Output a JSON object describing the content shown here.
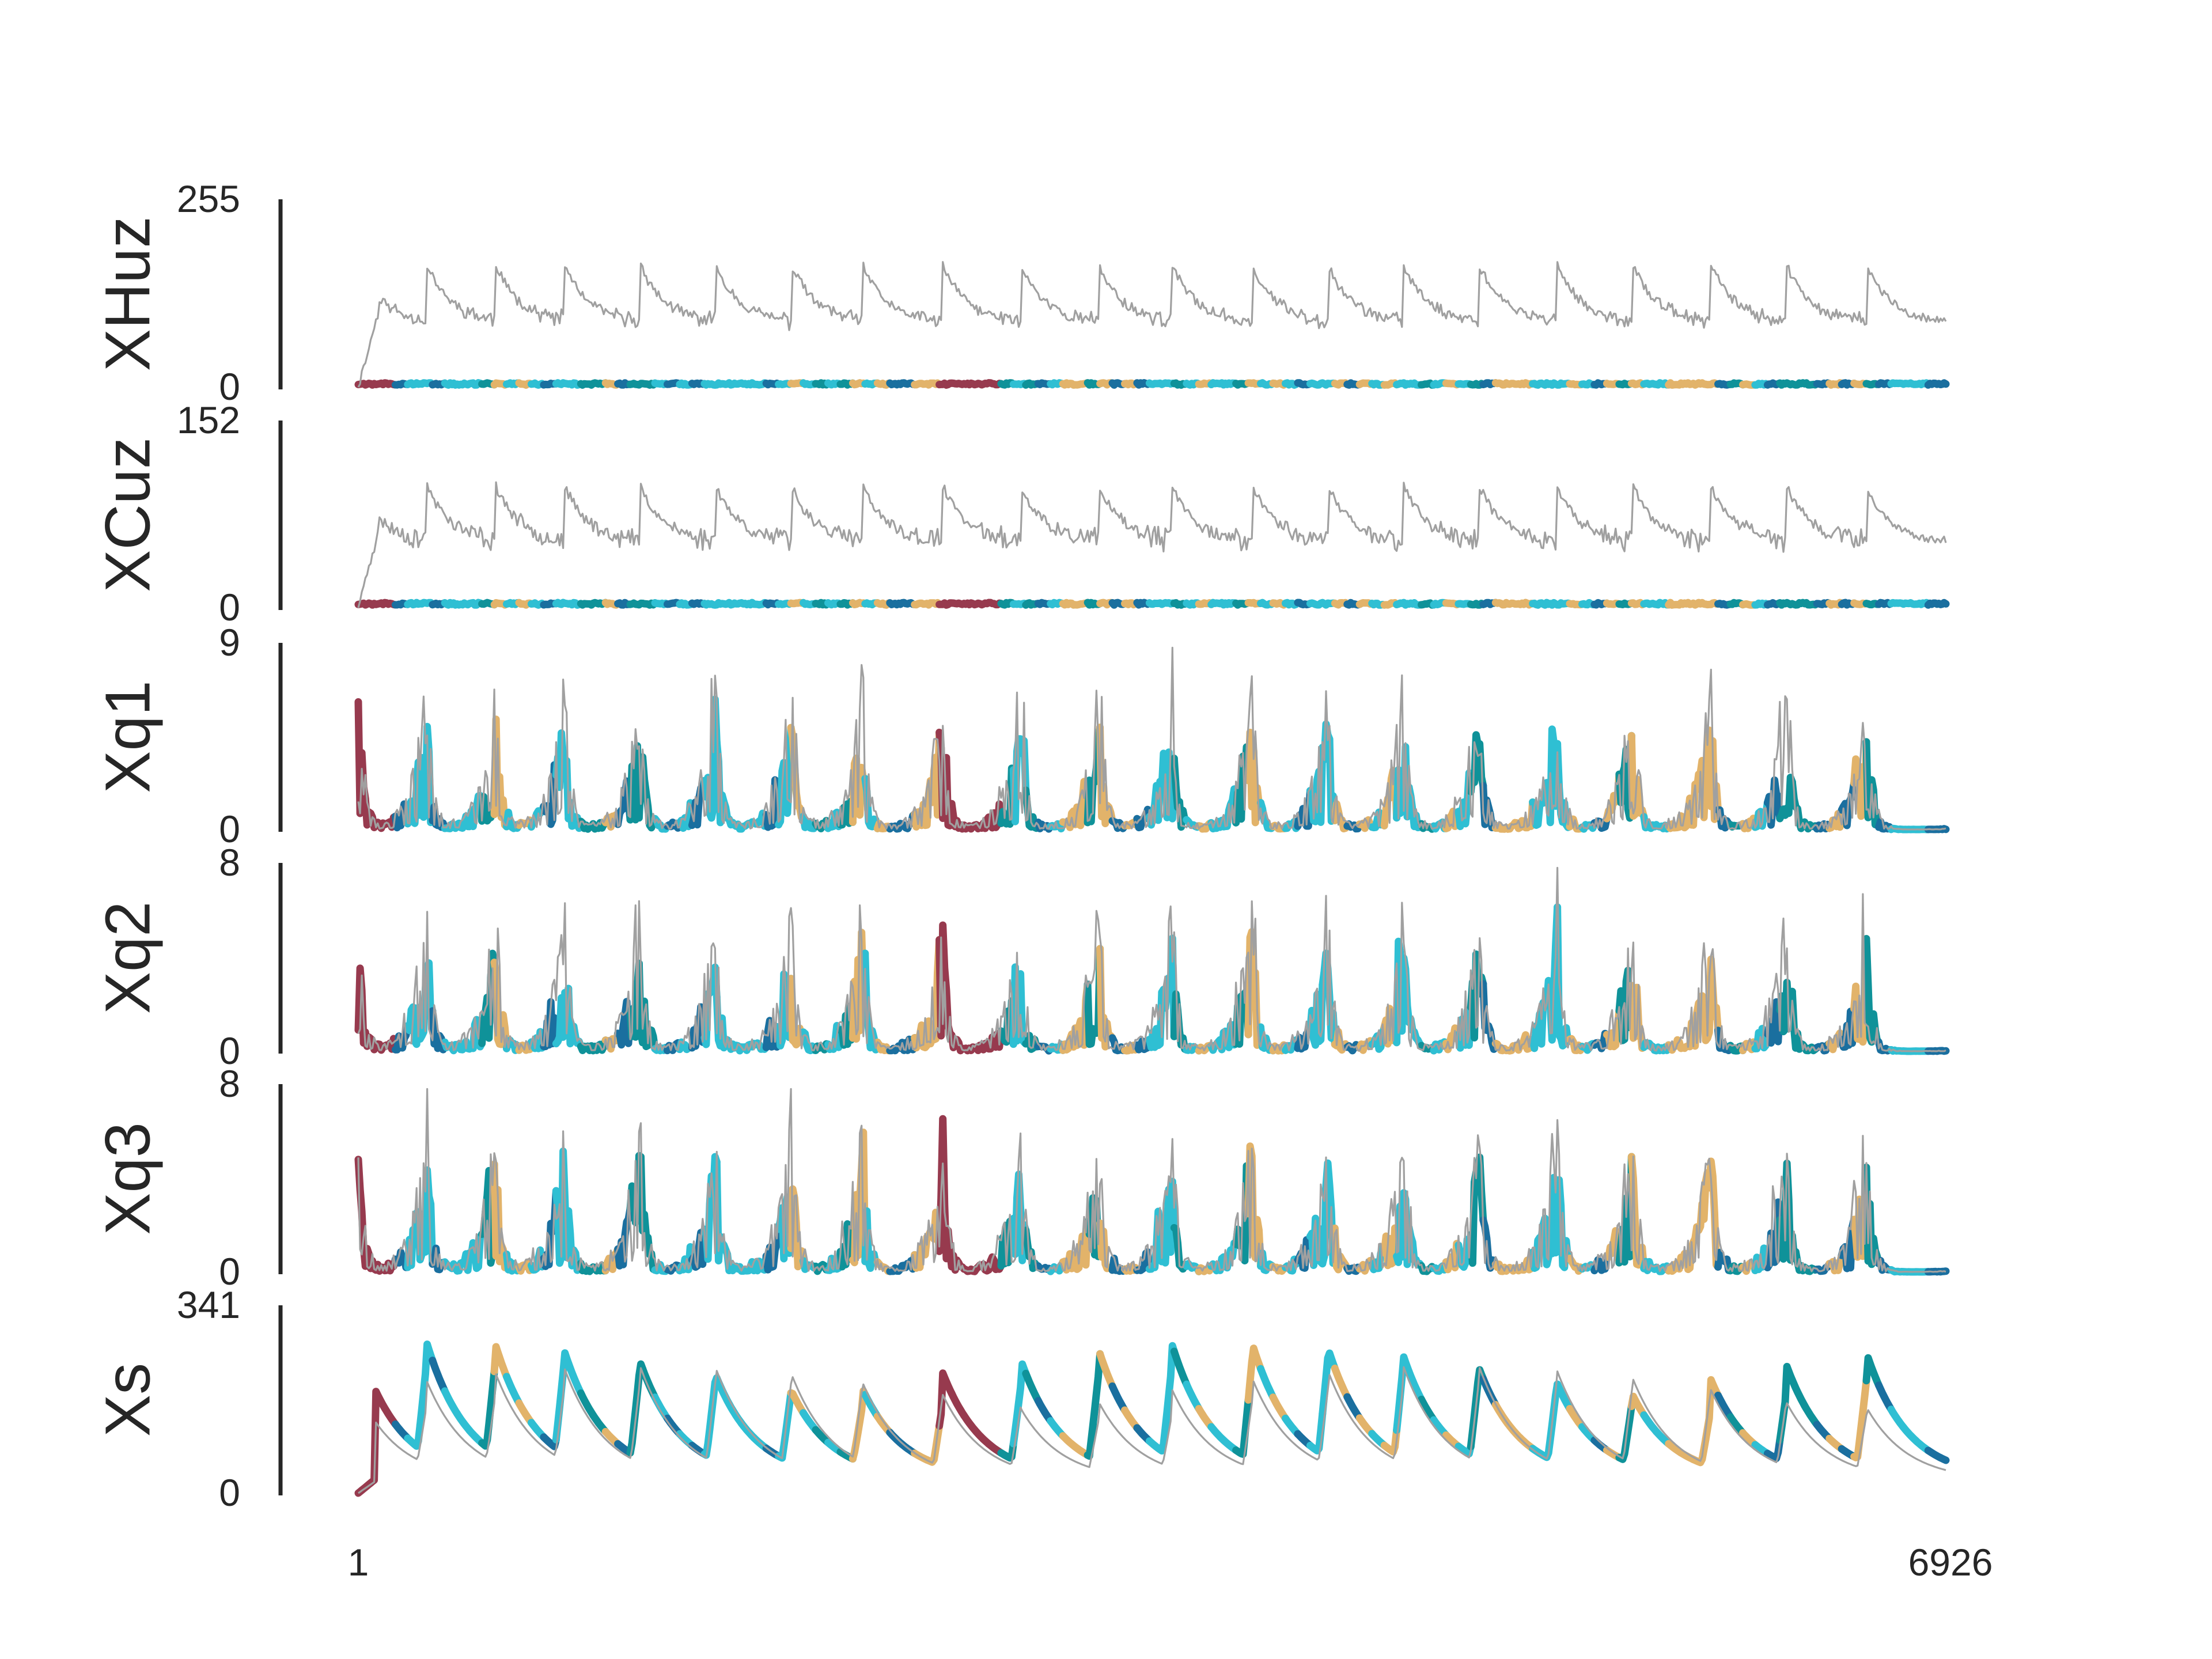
{
  "chart_data": {
    "type": "line",
    "x": {
      "min": 1,
      "max": 6926,
      "tick_labels": [
        "1",
        "6926"
      ]
    },
    "grid": false,
    "legend": "none",
    "colors": {
      "observed": "#a0a0a0",
      "states": [
        "#973a4e",
        "#2fbfd3",
        "#1a6f9f",
        "#0f9299",
        "#e2b36a"
      ]
    },
    "panels": [
      {
        "label": "XHuz",
        "ylim": [
          0,
          255
        ],
        "tick_labels": [
          "0",
          "255"
        ],
        "observed": {
          "kind": "wave",
          "base": 120,
          "amp": 95,
          "seed": 11
        },
        "state_trace": {
          "kind": "flat",
          "level": 4,
          "amp": 3
        }
      },
      {
        "label": "XCuz",
        "ylim": [
          0,
          152
        ],
        "tick_labels": [
          "0",
          "152"
        ],
        "observed": {
          "kind": "wave",
          "base": 72,
          "amp": 56,
          "seed": 23
        },
        "state_trace": {
          "kind": "flat",
          "level": 3,
          "amp": 2
        }
      },
      {
        "label": "Xq1",
        "ylim": [
          0,
          9
        ],
        "tick_labels": [
          "0",
          "9"
        ],
        "observed": {
          "kind": "spiky",
          "peak": 8.5,
          "seed": 37
        },
        "state_trace": {
          "kind": "spiky",
          "peak": 6.2,
          "seed": 41
        }
      },
      {
        "label": "Xq2",
        "ylim": [
          0,
          8
        ],
        "tick_labels": [
          "0",
          "8"
        ],
        "observed": {
          "kind": "spiky",
          "peak": 7.6,
          "seed": 53
        },
        "state_trace": {
          "kind": "spiky",
          "peak": 5.7,
          "seed": 59
        }
      },
      {
        "label": "Xq3",
        "ylim": [
          0,
          8
        ],
        "tick_labels": [
          "0",
          "8"
        ],
        "observed": {
          "kind": "spiky",
          "peak": 7.6,
          "seed": 67
        },
        "state_trace": {
          "kind": "spiky",
          "peak": 5.7,
          "seed": 71
        }
      },
      {
        "label": "Xs",
        "ylim": [
          0,
          341
        ],
        "tick_labels": [
          "0",
          "341"
        ],
        "observed": {
          "kind": "decay",
          "peak": 280,
          "seed": 79
        },
        "state_trace": {
          "kind": "decay",
          "peak": 330,
          "seed": 83
        }
      }
    ],
    "cycle_peaks": [
      300,
      600,
      900,
      1230,
      1560,
      1890,
      2200,
      2550,
      2890,
      3230,
      3550,
      3900,
      4230,
      4560,
      4890,
      5230,
      5560,
      5900,
      6230,
      6580
    ]
  }
}
